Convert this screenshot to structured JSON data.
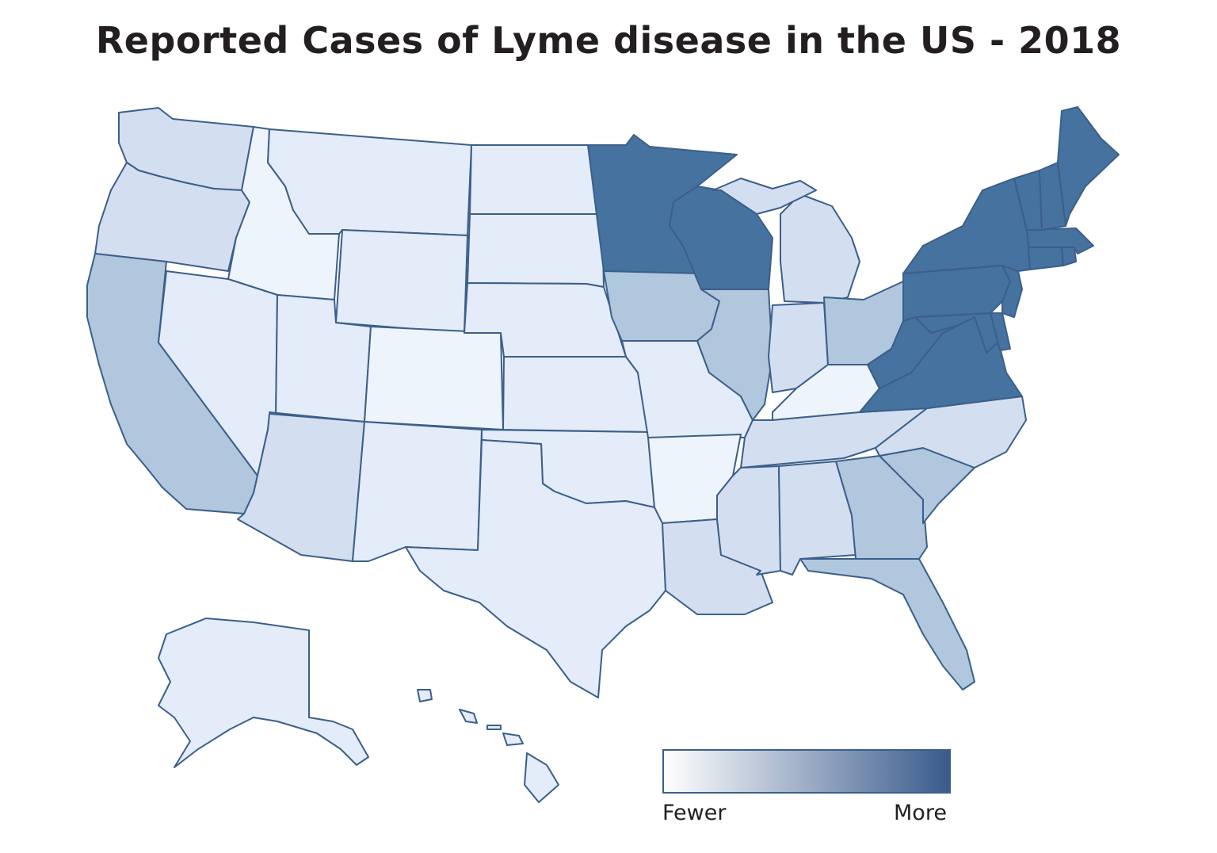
{
  "title": "Reported Cases of Lyme disease in the US - 2018",
  "colors": {
    "level1": "#eef4fb",
    "level2": "#e3ecf8",
    "level3": "#d3dff0",
    "level4": "#b0c7de",
    "level5": "#46729f",
    "stroke": "#3b5f8a",
    "legend_start": "#ffffff",
    "legend_end": "#3a5b8c"
  },
  "legend": {
    "low_label": "Fewer",
    "high_label": "More"
  },
  "states": [
    {
      "name": "WA",
      "level": 3
    },
    {
      "name": "OR",
      "level": 3
    },
    {
      "name": "CA",
      "level": 4
    },
    {
      "name": "ID",
      "level": 1
    },
    {
      "name": "NV",
      "level": 2
    },
    {
      "name": "MT",
      "level": 2
    },
    {
      "name": "WY",
      "level": 2
    },
    {
      "name": "UT",
      "level": 2
    },
    {
      "name": "AZ",
      "level": 3
    },
    {
      "name": "CO",
      "level": 1
    },
    {
      "name": "NM",
      "level": 2
    },
    {
      "name": "ND",
      "level": 2
    },
    {
      "name": "SD",
      "level": 2
    },
    {
      "name": "NE",
      "level": 2
    },
    {
      "name": "KS",
      "level": 2
    },
    {
      "name": "OK",
      "level": 2
    },
    {
      "name": "TX",
      "level": 2
    },
    {
      "name": "MN",
      "level": 5
    },
    {
      "name": "IA",
      "level": 4
    },
    {
      "name": "MO",
      "level": 2
    },
    {
      "name": "AR",
      "level": 1
    },
    {
      "name": "LA",
      "level": 3
    },
    {
      "name": "WI",
      "level": 5
    },
    {
      "name": "IL",
      "level": 4
    },
    {
      "name": "MI",
      "level": 3
    },
    {
      "name": "IN",
      "level": 3
    },
    {
      "name": "OH",
      "level": 4
    },
    {
      "name": "KY",
      "level": 1
    },
    {
      "name": "TN",
      "level": 3
    },
    {
      "name": "MS",
      "level": 3
    },
    {
      "name": "AL",
      "level": 3
    },
    {
      "name": "GA",
      "level": 4
    },
    {
      "name": "FL",
      "level": 4
    },
    {
      "name": "SC",
      "level": 4
    },
    {
      "name": "NC",
      "level": 3
    },
    {
      "name": "VA",
      "level": 5
    },
    {
      "name": "WV",
      "level": 5
    },
    {
      "name": "PA",
      "level": 5
    },
    {
      "name": "NY",
      "level": 5
    },
    {
      "name": "MD",
      "level": 5
    },
    {
      "name": "DE",
      "level": 5
    },
    {
      "name": "NJ",
      "level": 5
    },
    {
      "name": "CT",
      "level": 5
    },
    {
      "name": "RI",
      "level": 5
    },
    {
      "name": "MA",
      "level": 5
    },
    {
      "name": "VT",
      "level": 5
    },
    {
      "name": "NH",
      "level": 5
    },
    {
      "name": "ME",
      "level": 5
    },
    {
      "name": "AK",
      "level": 2
    },
    {
      "name": "HI",
      "level": 2
    }
  ]
}
